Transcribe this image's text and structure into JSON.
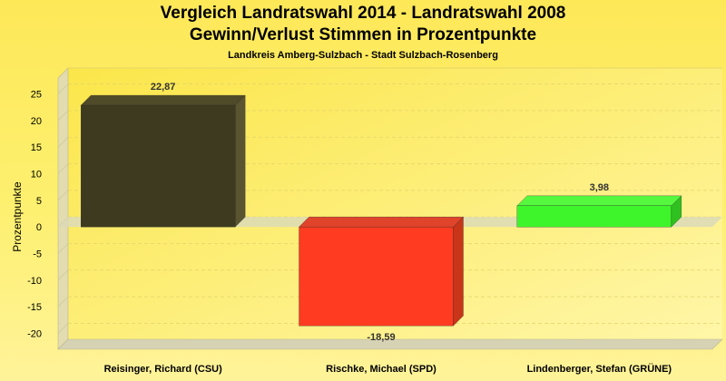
{
  "chart_data": {
    "type": "bar",
    "title": "Vergleich Landratswahl 2014 - Landratswahl 2008",
    "subtitle": "Gewinn/Verlust Stimmen in Prozentpunkte",
    "subtitle2": "Landkreis Amberg-Sulzbach - Stadt Sulzbach-Rosenberg",
    "ylabel": "Prozentpunkte",
    "xlabel": "",
    "categories": [
      "Reisinger, Richard (CSU)",
      "Rischke, Michael (SPD)",
      "Lindenberger, Stefan (GRÜNE)"
    ],
    "values": [
      22.87,
      -18.59,
      3.98
    ],
    "value_labels": [
      "22,87",
      "-18,59",
      "3,98"
    ],
    "ylim": [
      -23,
      28
    ],
    "yticks": [
      -20,
      -15,
      -10,
      -5,
      0,
      5,
      10,
      15,
      20,
      25
    ],
    "ytick_labels": [
      "-20",
      "-15",
      "-10",
      "-5",
      "0",
      "5",
      "10",
      "15",
      "20",
      "25"
    ],
    "colors": [
      "#3d3a1f",
      "#ff3c22",
      "#3ef42a"
    ],
    "side_colors": [
      "#5a5530",
      "#c83518",
      "#2fc11f"
    ],
    "top_colors": [
      "#4f4a28",
      "#e0452c",
      "#55f83f"
    ],
    "grid": true,
    "legend": "none"
  }
}
